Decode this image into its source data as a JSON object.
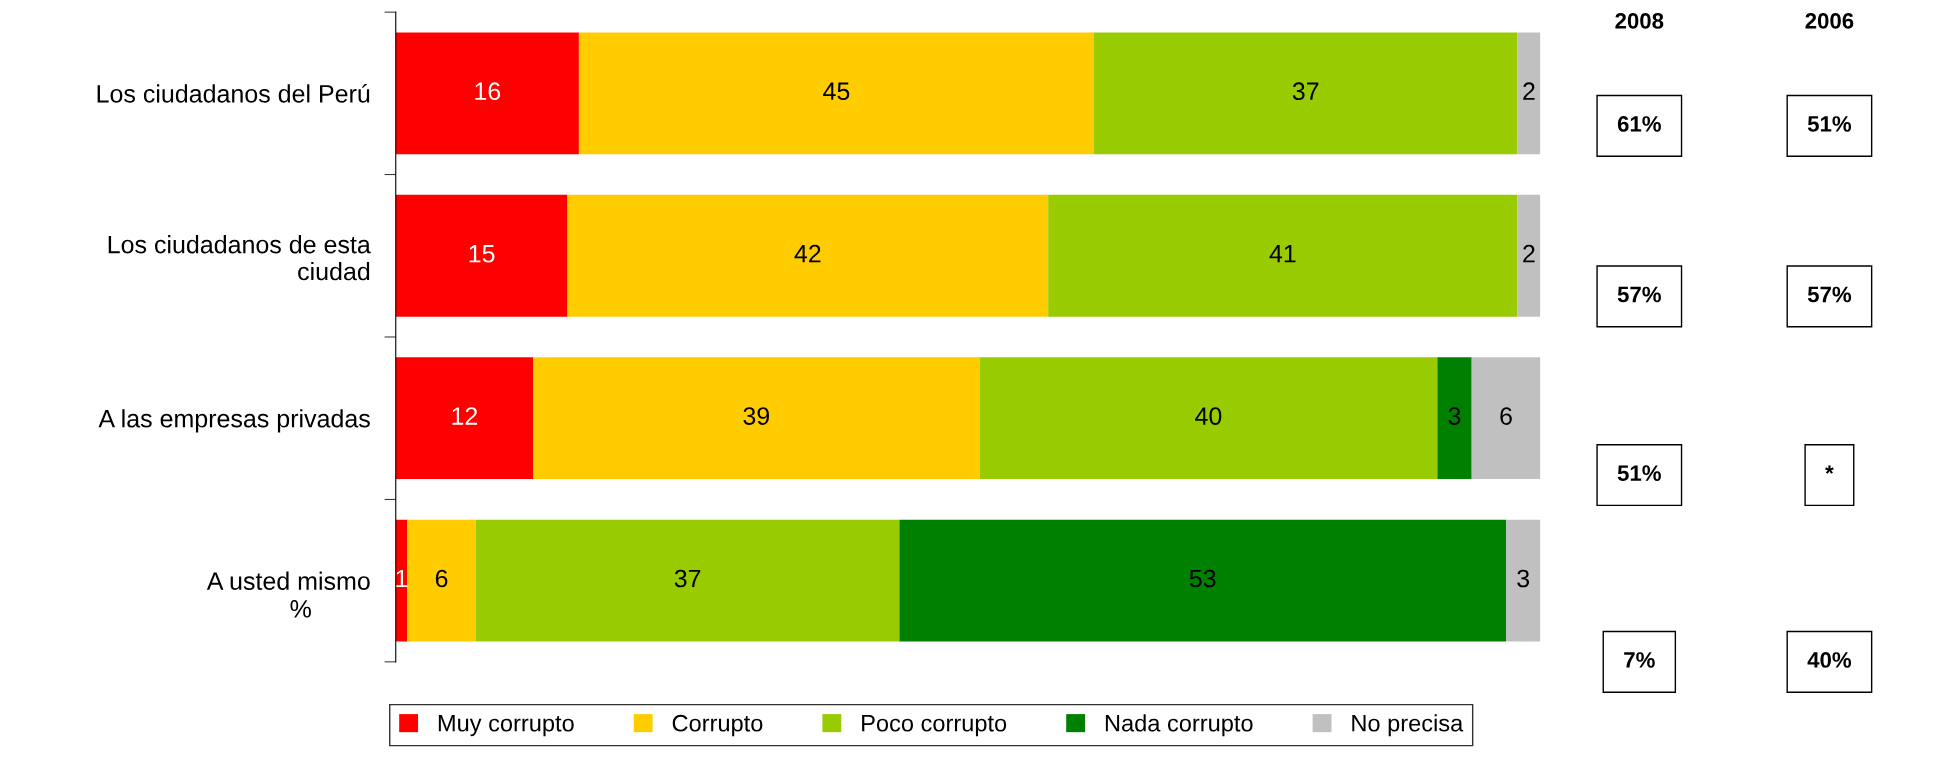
{
  "chart_data": {
    "type": "bar",
    "orientation": "horizontal",
    "stacked": true,
    "data_labels": true,
    "categories": [
      "Los ciudadanos del Perú",
      "Los ciudadanos de esta\nciudad",
      "A las empresas privadas",
      "A usted mismo"
    ],
    "series": [
      {
        "name": "Muy corrupto",
        "color": "#ff0000",
        "values": [
          16,
          15,
          12,
          1
        ]
      },
      {
        "name": "Corrupto",
        "color": "#ffcc00",
        "values": [
          45,
          42,
          39,
          6
        ]
      },
      {
        "name": "Poco corrupto",
        "color": "#99cc00",
        "values": [
          37,
          41,
          40,
          37
        ]
      },
      {
        "name": "Nada corrupto",
        "color": "#008000",
        "values": [
          null,
          null,
          3,
          53
        ]
      },
      {
        "name": "No precisa",
        "color": "#c0c0c0",
        "values": [
          2,
          2,
          6,
          3
        ]
      }
    ],
    "xlim": [
      0,
      100
    ],
    "tick_labels": "y",
    "grid": false,
    "legend": "bottom",
    "annotations": [
      "%",
      "2008",
      "2006",
      "61%",
      "51%",
      "57%",
      "57%",
      "51%",
      "*",
      "7%",
      "40%"
    ]
  }
}
